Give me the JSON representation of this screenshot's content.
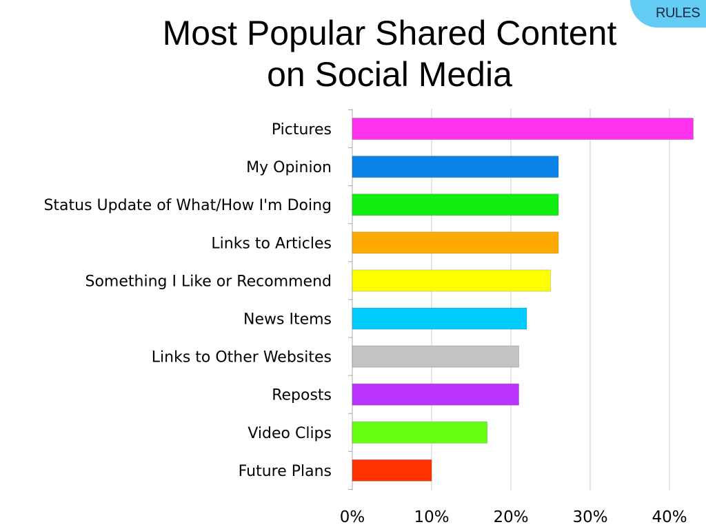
{
  "badge": {
    "text": "RULES",
    "color": "#63ccf2"
  },
  "chart_data": {
    "type": "bar",
    "orientation": "horizontal",
    "title": [
      "Most Popular Shared Content",
      "on Social Media"
    ],
    "categories": [
      "Pictures",
      "My Opinion",
      "Status Update of What/How I'm Doing",
      "Links to Articles",
      "Something I Like or Recommend",
      "News Items",
      "Links to Other Websites",
      "Reposts",
      "Video Clips",
      "Future Plans"
    ],
    "values": [
      43,
      26,
      26,
      26,
      25,
      22,
      21,
      21,
      17,
      10
    ],
    "colors": [
      "#ff33ee",
      "#0a82e8",
      "#11ee11",
      "#ffaa00",
      "#ffff00",
      "#00ccff",
      "#c3c3c3",
      "#bb33ff",
      "#66ff11",
      "#ff3300"
    ],
    "xlim": [
      0,
      43
    ],
    "xticks": [
      0,
      10,
      20,
      30,
      40
    ],
    "xtick_labels": [
      "0%",
      "10%",
      "20%",
      "30%",
      "40%"
    ],
    "grid": true,
    "legend": "none"
  }
}
